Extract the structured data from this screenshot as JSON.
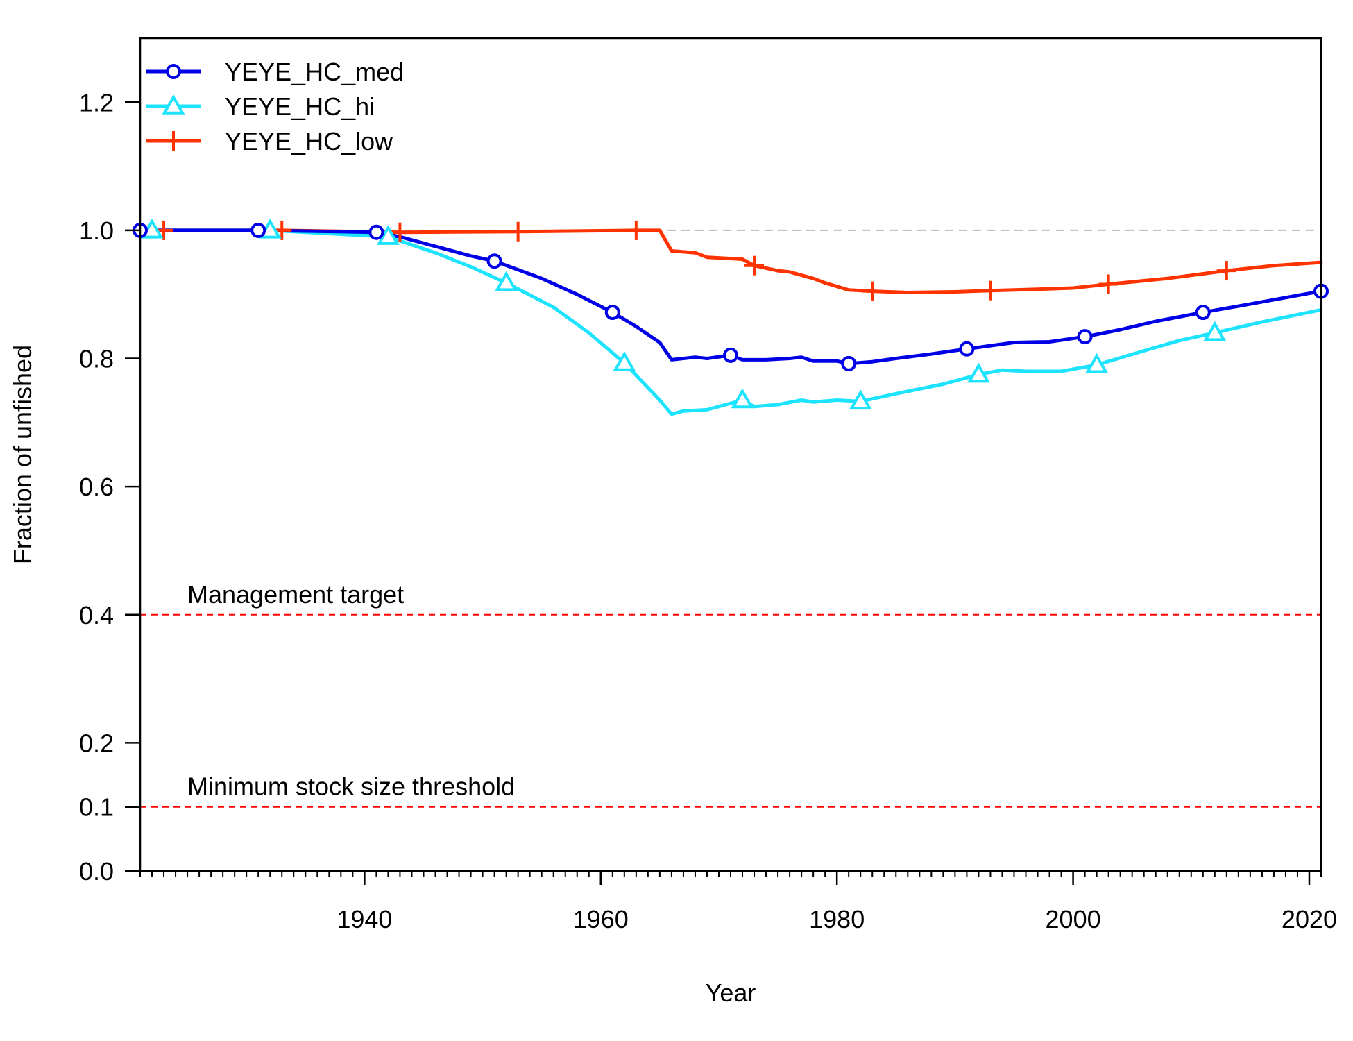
{
  "chart_data": {
    "type": "line",
    "title": "",
    "xlabel": "Year",
    "ylabel": "Fraction of unfished",
    "xlim": [
      1921,
      2021
    ],
    "ylim": [
      0,
      1.3
    ],
    "x_ticks": [
      1940,
      1960,
      1980,
      2000,
      2020
    ],
    "y_ticks": [
      0.0,
      0.1,
      0.2,
      0.4,
      0.6,
      0.8,
      1.0,
      1.2
    ],
    "x_tick_labels": [
      "1940",
      "1960",
      "1980",
      "2000",
      "2020"
    ],
    "y_tick_labels": [
      "0.0",
      "0.1",
      "0.2",
      "0.4",
      "0.6",
      "0.8",
      "1.0",
      "1.2"
    ],
    "legend_position": "top-left",
    "grid": false,
    "reference_lines": [
      {
        "y": 1.0,
        "color": "#bbbbbb",
        "style": "dashed",
        "label": ""
      },
      {
        "y": 0.4,
        "color": "#ff0000",
        "style": "dashed",
        "label": "Management target"
      },
      {
        "y": 0.1,
        "color": "#ff0000",
        "style": "dashed",
        "label": "Minimum stock size threshold"
      }
    ],
    "series": [
      {
        "name": "YEYE_HC_med",
        "color": "#0000e6",
        "marker": "circle",
        "marker_x": [
          1921,
          1931,
          1941,
          1951,
          1961,
          1971,
          1981,
          1991,
          2001,
          2011,
          2021
        ],
        "x": [
          1921,
          1931,
          1941,
          1943,
          1946,
          1949,
          1951,
          1955,
          1958,
          1961,
          1963,
          1965,
          1966,
          1968,
          1969,
          1971,
          1972,
          1974,
          1976,
          1977,
          1978,
          1980,
          1981,
          1983,
          1985,
          1988,
          1991,
          1993,
          1995,
          1998,
          2001,
          2004,
          2007,
          2011,
          2015,
          2018,
          2021
        ],
        "y": [
          1.0,
          1.0,
          0.997,
          0.99,
          0.975,
          0.96,
          0.952,
          0.925,
          0.9,
          0.872,
          0.85,
          0.825,
          0.798,
          0.802,
          0.8,
          0.805,
          0.798,
          0.798,
          0.8,
          0.802,
          0.796,
          0.796,
          0.792,
          0.795,
          0.8,
          0.807,
          0.815,
          0.82,
          0.825,
          0.826,
          0.834,
          0.845,
          0.858,
          0.872,
          0.885,
          0.895,
          0.905
        ]
      },
      {
        "name": "YEYE_HC_hi",
        "color": "#1ee3ff",
        "marker": "triangle",
        "marker_x": [
          1922,
          1932,
          1942,
          1952,
          1962,
          1972,
          1982,
          1992,
          2002,
          2012
        ],
        "x": [
          1921,
          1922,
          1932,
          1942,
          1946,
          1949,
          1952,
          1956,
          1959,
          1962,
          1965,
          1966,
          1967,
          1969,
          1972,
          1973,
          1975,
          1977,
          1978,
          1980,
          1982,
          1985,
          1989,
          1992,
          1994,
          1996,
          1999,
          2002,
          2006,
          2009,
          2012,
          2016,
          2021
        ],
        "y": [
          1.0,
          1.0,
          1.0,
          0.99,
          0.965,
          0.943,
          0.918,
          0.88,
          0.84,
          0.793,
          0.735,
          0.713,
          0.718,
          0.72,
          0.735,
          0.725,
          0.728,
          0.735,
          0.732,
          0.735,
          0.733,
          0.745,
          0.76,
          0.775,
          0.782,
          0.78,
          0.78,
          0.79,
          0.812,
          0.828,
          0.84,
          0.857,
          0.876
        ]
      },
      {
        "name": "YEYE_HC_low",
        "color": "#ff3300",
        "marker": "plus",
        "marker_x": [
          1923,
          1933,
          1943,
          1953,
          1963,
          1973,
          1983,
          1993,
          2003,
          2013
        ],
        "x": [
          1921,
          1923,
          1933,
          1943,
          1953,
          1963,
          1965,
          1966,
          1968,
          1969,
          1970,
          1972,
          1973,
          1975,
          1976,
          1978,
          1979,
          1981,
          1983,
          1986,
          1990,
          1993,
          1997,
          2000,
          2003,
          2008,
          2013,
          2017,
          2021
        ],
        "y": [
          1.0,
          1.0,
          1.0,
          0.997,
          0.998,
          1.0,
          1.0,
          0.968,
          0.965,
          0.958,
          0.957,
          0.955,
          0.945,
          0.937,
          0.935,
          0.925,
          0.918,
          0.907,
          0.905,
          0.903,
          0.904,
          0.906,
          0.908,
          0.91,
          0.916,
          0.925,
          0.937,
          0.945,
          0.95
        ]
      }
    ]
  }
}
